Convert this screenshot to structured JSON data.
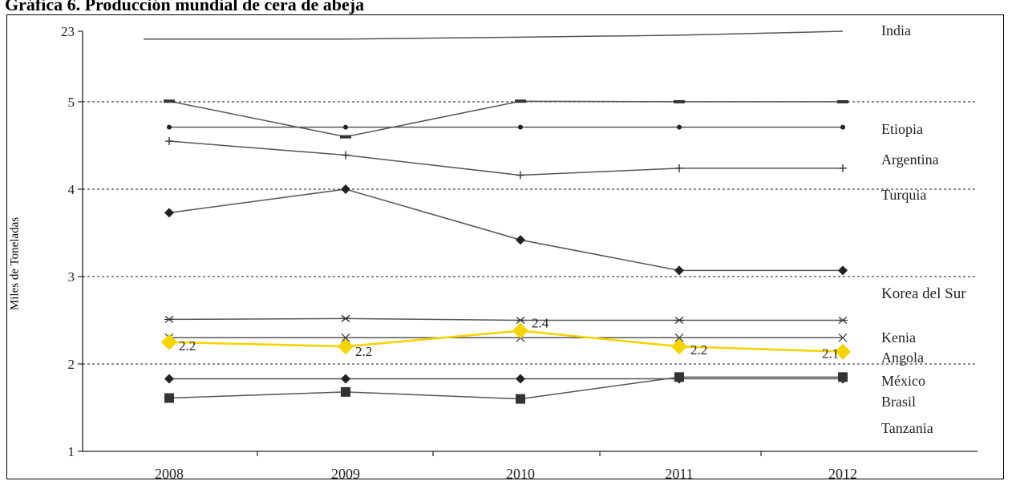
{
  "page_title": "Gráfica 6. Producción mundial de cera de abeja",
  "chart_data": {
    "type": "line",
    "title": "Gráfica 6. Producción mundial de cera de abeja",
    "ylabel": "Miles de Toneladas",
    "xlabel": "",
    "x": [
      "2008",
      "2009",
      "2010",
      "2011",
      "2012"
    ],
    "yticks": [
      "1",
      "2",
      "3",
      "4",
      "5",
      "23"
    ],
    "y_axis_note": "broken axis: 1 to 5 then jump to 23",
    "grid": "dashed horizontal at 2, 3, 4, 5",
    "legend": "series names at right end of each line",
    "series": [
      {
        "name": "India",
        "values": [
          21.0,
          21.0,
          21.5,
          22.0,
          23.0
        ],
        "color": "#555555",
        "marker": "none"
      },
      {
        "name": "Etiopia",
        "values": [
          5.16,
          4.6,
          5.16,
          5.02,
          5.02
        ],
        "color": "#555555",
        "marker": "dash"
      },
      {
        "name": "Argentina",
        "values": [
          4.71,
          4.71,
          4.71,
          4.71,
          4.71
        ],
        "color": "#555555",
        "marker": "dot"
      },
      {
        "name": "Turquia",
        "values": [
          4.55,
          4.39,
          4.16,
          4.24,
          4.24
        ],
        "color": "#555555",
        "marker": "plus"
      },
      {
        "name": "Korea del Sur",
        "values": [
          3.73,
          4.0,
          3.42,
          3.07,
          3.07
        ],
        "color": "#555555",
        "marker": "diamond"
      },
      {
        "name": "Kenia",
        "values": [
          2.51,
          2.52,
          2.5,
          2.5,
          2.5
        ],
        "color": "#555555",
        "marker": "star"
      },
      {
        "name": "Angola",
        "values": [
          2.3,
          2.3,
          2.3,
          2.3,
          2.3
        ],
        "color": "#555555",
        "marker": "x"
      },
      {
        "name": "México",
        "values": [
          2.25,
          2.2,
          2.38,
          2.2,
          2.14
        ],
        "color": "#f5d400",
        "marker": "bigdiamond",
        "data_labels": [
          "2.2",
          "2.2",
          "2.4",
          "2.2",
          "2.1"
        ]
      },
      {
        "name": "Brasil",
        "values": [
          1.83,
          1.83,
          1.83,
          1.83,
          1.83
        ],
        "color": "#555555",
        "marker": "diamond"
      },
      {
        "name": "Tanzania",
        "values": [
          1.61,
          1.68,
          1.6,
          1.85,
          1.85
        ],
        "color": "#555555",
        "marker": "square"
      }
    ]
  }
}
